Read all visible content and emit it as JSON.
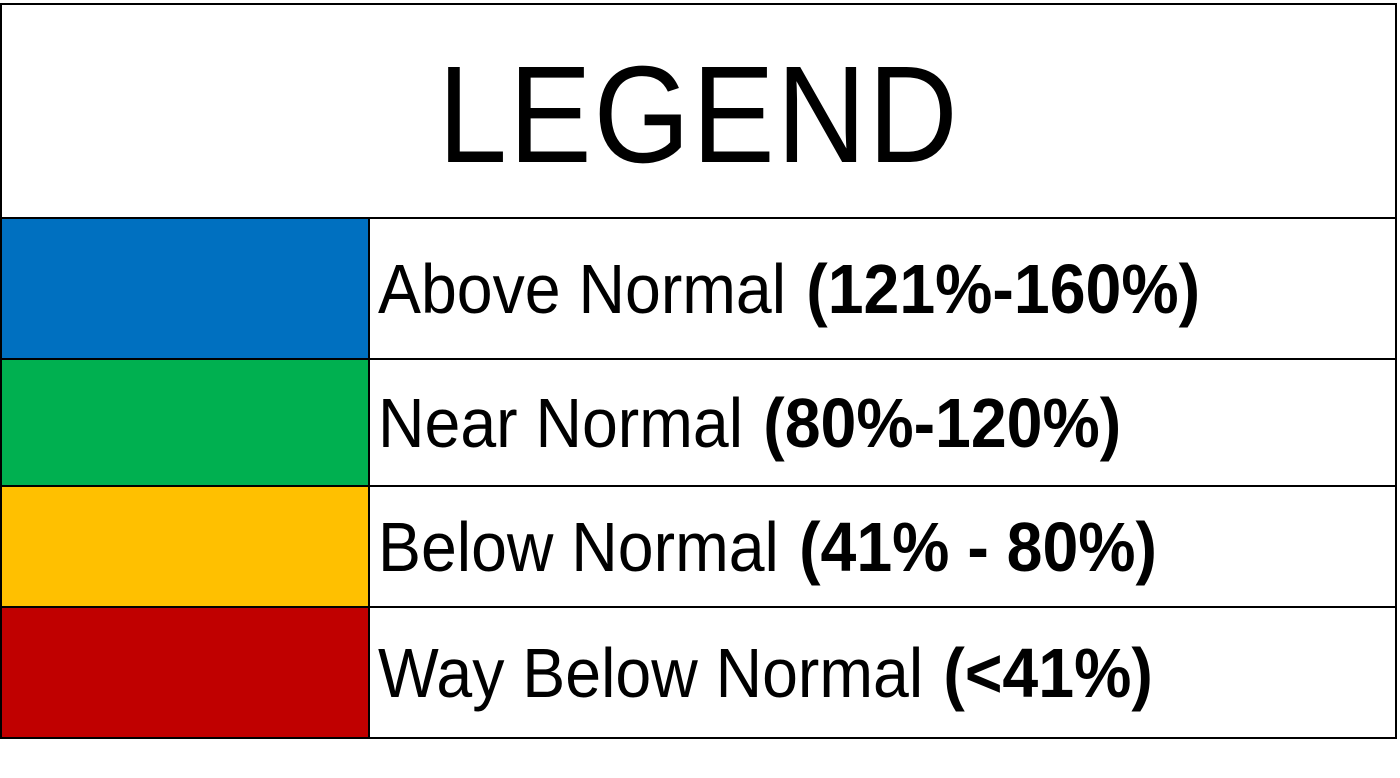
{
  "title": "LEGEND",
  "items": [
    {
      "label": "Above Normal",
      "range": "(121%-160%)",
      "color": "#0070c0"
    },
    {
      "label": "Near Normal",
      "range": "(80%-120%)",
      "color": "#00b050"
    },
    {
      "label": "Below Normal",
      "range": "(41% - 80%)",
      "color": "#ffc000"
    },
    {
      "label": "Way Below Normal",
      "range": "(<41%)",
      "color": "#c00000"
    }
  ]
}
